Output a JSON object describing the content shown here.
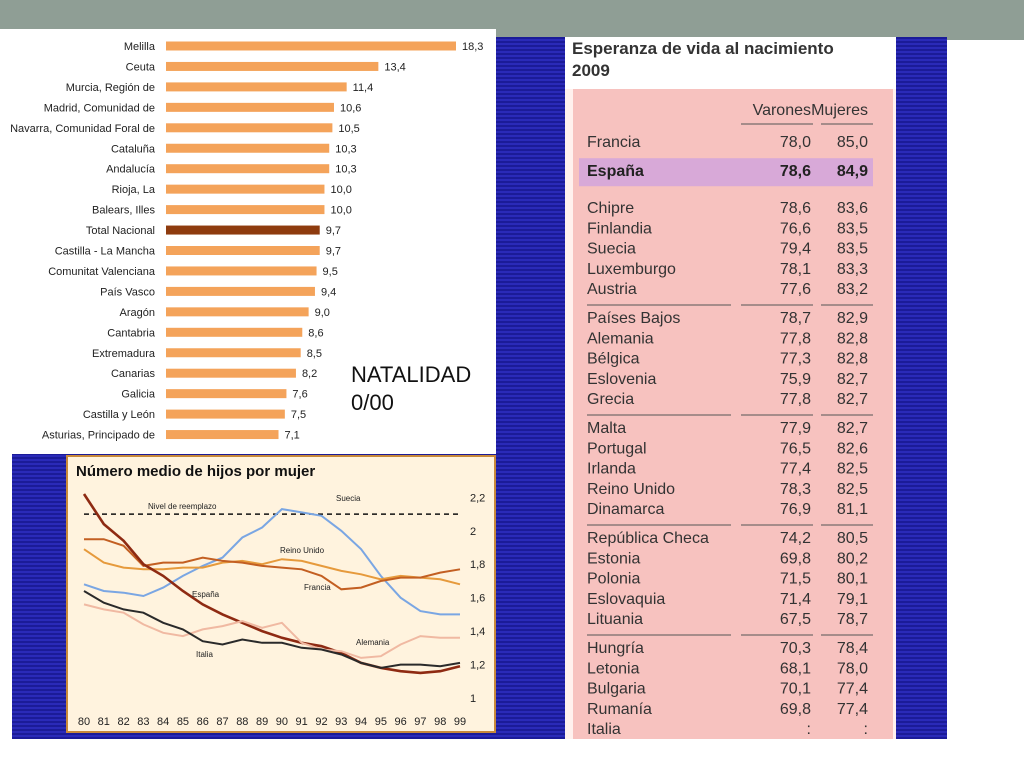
{
  "natalidad_label": [
    "NATALIDAD",
    "0/00"
  ],
  "chart_data": [
    {
      "type": "bar",
      "orientation": "horizontal",
      "title": "",
      "categories": [
        "Melilla",
        "Ceuta",
        "Murcia, Región de",
        "Madrid, Comunidad de",
        "Navarra, Comunidad Foral de",
        "Cataluña",
        "Andalucía",
        "Rioja, La",
        "Balears, Illes",
        "Total Nacional",
        "Castilla - La Mancha",
        "Comunitat Valenciana",
        "País Vasco",
        "Aragón",
        "Cantabria",
        "Extremadura",
        "Canarias",
        "Galicia",
        "Castilla y León",
        "Asturias, Principado de"
      ],
      "values": [
        18.3,
        13.4,
        11.4,
        10.6,
        10.5,
        10.3,
        10.3,
        10.0,
        10.0,
        9.7,
        9.7,
        9.5,
        9.4,
        9.0,
        8.6,
        8.5,
        8.2,
        7.6,
        7.5,
        7.1
      ],
      "value_labels": [
        "18,3",
        "13,4",
        "11,4",
        "10,6",
        "10,5",
        "10,3",
        "10,3",
        "10,0",
        "10,0",
        "9,7",
        "9,7",
        "9,5",
        "9,4",
        "9,0",
        "8,6",
        "8,5",
        "8,2",
        "7,6",
        "7,5",
        "7,1"
      ],
      "highlight": "Total Nacional",
      "colors": {
        "bar": "#f4a35a",
        "highlight": "#8e3b0e"
      },
      "xlim": [
        0,
        18.3
      ]
    },
    {
      "type": "line",
      "title": "Número medio de hijos por mujer",
      "x": [
        80,
        81,
        82,
        83,
        84,
        85,
        86,
        87,
        88,
        89,
        90,
        91,
        92,
        93,
        94,
        95,
        96,
        97,
        98,
        99
      ],
      "x_tick_labels": [
        "80",
        "81",
        "82",
        "83",
        "84",
        "85",
        "86",
        "87",
        "88",
        "89",
        "90",
        "91",
        "92",
        "93",
        "94",
        "95",
        "96",
        "97",
        "98",
        "99"
      ],
      "y_ticks": [
        1,
        1.2,
        1.4,
        1.6,
        1.8,
        2,
        2.2
      ],
      "y_tick_labels": [
        "1",
        "1,2",
        "1,4",
        "1,6",
        "1,8",
        "2",
        "2,2"
      ],
      "ylim": [
        1,
        2.25
      ],
      "reference_line": {
        "label": "Nivel de reemplazo",
        "value": 2.1
      },
      "series": [
        {
          "name": "Suecia",
          "color": "#7aa6e3",
          "values": [
            1.68,
            1.64,
            1.63,
            1.61,
            1.66,
            1.73,
            1.79,
            1.84,
            1.96,
            2.02,
            2.13,
            2.11,
            2.09,
            2.0,
            1.89,
            1.73,
            1.6,
            1.52,
            1.5,
            1.5
          ]
        },
        {
          "name": "Reino Unido",
          "color": "#e69a3c",
          "values": [
            1.89,
            1.81,
            1.78,
            1.77,
            1.77,
            1.78,
            1.78,
            1.81,
            1.82,
            1.8,
            1.83,
            1.82,
            1.79,
            1.76,
            1.74,
            1.71,
            1.73,
            1.72,
            1.71,
            1.68
          ]
        },
        {
          "name": "Francia",
          "color": "#c35f22",
          "values": [
            1.95,
            1.95,
            1.91,
            1.79,
            1.81,
            1.81,
            1.84,
            1.82,
            1.81,
            1.79,
            1.78,
            1.77,
            1.73,
            1.65,
            1.66,
            1.7,
            1.72,
            1.72,
            1.75,
            1.77
          ]
        },
        {
          "name": "España",
          "color": "#8e2a12",
          "values": [
            2.22,
            2.04,
            1.94,
            1.8,
            1.73,
            1.64,
            1.56,
            1.5,
            1.45,
            1.4,
            1.36,
            1.33,
            1.31,
            1.27,
            1.21,
            1.18,
            1.16,
            1.15,
            1.16,
            1.19
          ]
        },
        {
          "name": "Alemania",
          "color": "#f0b9a2",
          "values": [
            1.56,
            1.53,
            1.51,
            1.44,
            1.39,
            1.37,
            1.41,
            1.43,
            1.46,
            1.42,
            1.45,
            1.33,
            1.29,
            1.28,
            1.24,
            1.25,
            1.32,
            1.37,
            1.36,
            1.36
          ]
        },
        {
          "name": "Italia",
          "color": "#2a2a2a",
          "values": [
            1.64,
            1.57,
            1.53,
            1.51,
            1.45,
            1.41,
            1.34,
            1.32,
            1.35,
            1.33,
            1.33,
            1.3,
            1.29,
            1.26,
            1.21,
            1.18,
            1.2,
            1.2,
            1.19,
            1.21
          ]
        }
      ]
    }
  ],
  "life_table": {
    "title_line1": "Esperanza de vida al nacimiento",
    "title_line2": "2009",
    "col_varones": "Varones",
    "col_mujeres": "Mujeres",
    "highlight_row": "España",
    "groups": [
      [
        [
          "Francia",
          "78,0",
          "85,0"
        ]
      ],
      [
        [
          "España",
          "78,6",
          "84,9"
        ]
      ],
      [
        [
          "Chipre",
          "78,6",
          "83,6"
        ],
        [
          "Finlandia",
          "76,6",
          "83,5"
        ],
        [
          "Suecia",
          "79,4",
          "83,5"
        ],
        [
          "Luxemburgo",
          "78,1",
          "83,3"
        ],
        [
          "Austria",
          "77,6",
          "83,2"
        ]
      ],
      [
        [
          "Países Bajos",
          "78,7",
          "82,9"
        ],
        [
          "Alemania",
          "77,8",
          "82,8"
        ],
        [
          "Bélgica",
          "77,3",
          "82,8"
        ],
        [
          "Eslovenia",
          "75,9",
          "82,7"
        ],
        [
          "Grecia",
          "77,8",
          "82,7"
        ]
      ],
      [
        [
          "Malta",
          "77,9",
          "82,7"
        ],
        [
          "Portugal",
          "76,5",
          "82,6"
        ],
        [
          "Irlanda",
          "77,4",
          "82,5"
        ],
        [
          "Reino Unido",
          "78,3",
          "82,5"
        ],
        [
          "Dinamarca",
          "76,9",
          "81,1"
        ]
      ],
      [
        [
          "República Checa",
          "74,2",
          "80,5"
        ],
        [
          "Estonia",
          "69,8",
          "80,2"
        ],
        [
          "Polonia",
          "71,5",
          "80,1"
        ],
        [
          "Eslovaquia",
          "71,4",
          "79,1"
        ],
        [
          "Lituania",
          "67,5",
          "78,7"
        ]
      ],
      [
        [
          "Hungría",
          "70,3",
          "78,4"
        ],
        [
          "Letonia",
          "68,1",
          "78,0"
        ],
        [
          "Bulgaria",
          "70,1",
          "77,4"
        ],
        [
          "Rumanía",
          "69,8",
          "77,4"
        ],
        [
          "Italia",
          ":",
          ":"
        ]
      ]
    ],
    "colors": {
      "background": "#f7c2bf",
      "highlight": "#d8a9d8",
      "rule": "#555555"
    }
  }
}
